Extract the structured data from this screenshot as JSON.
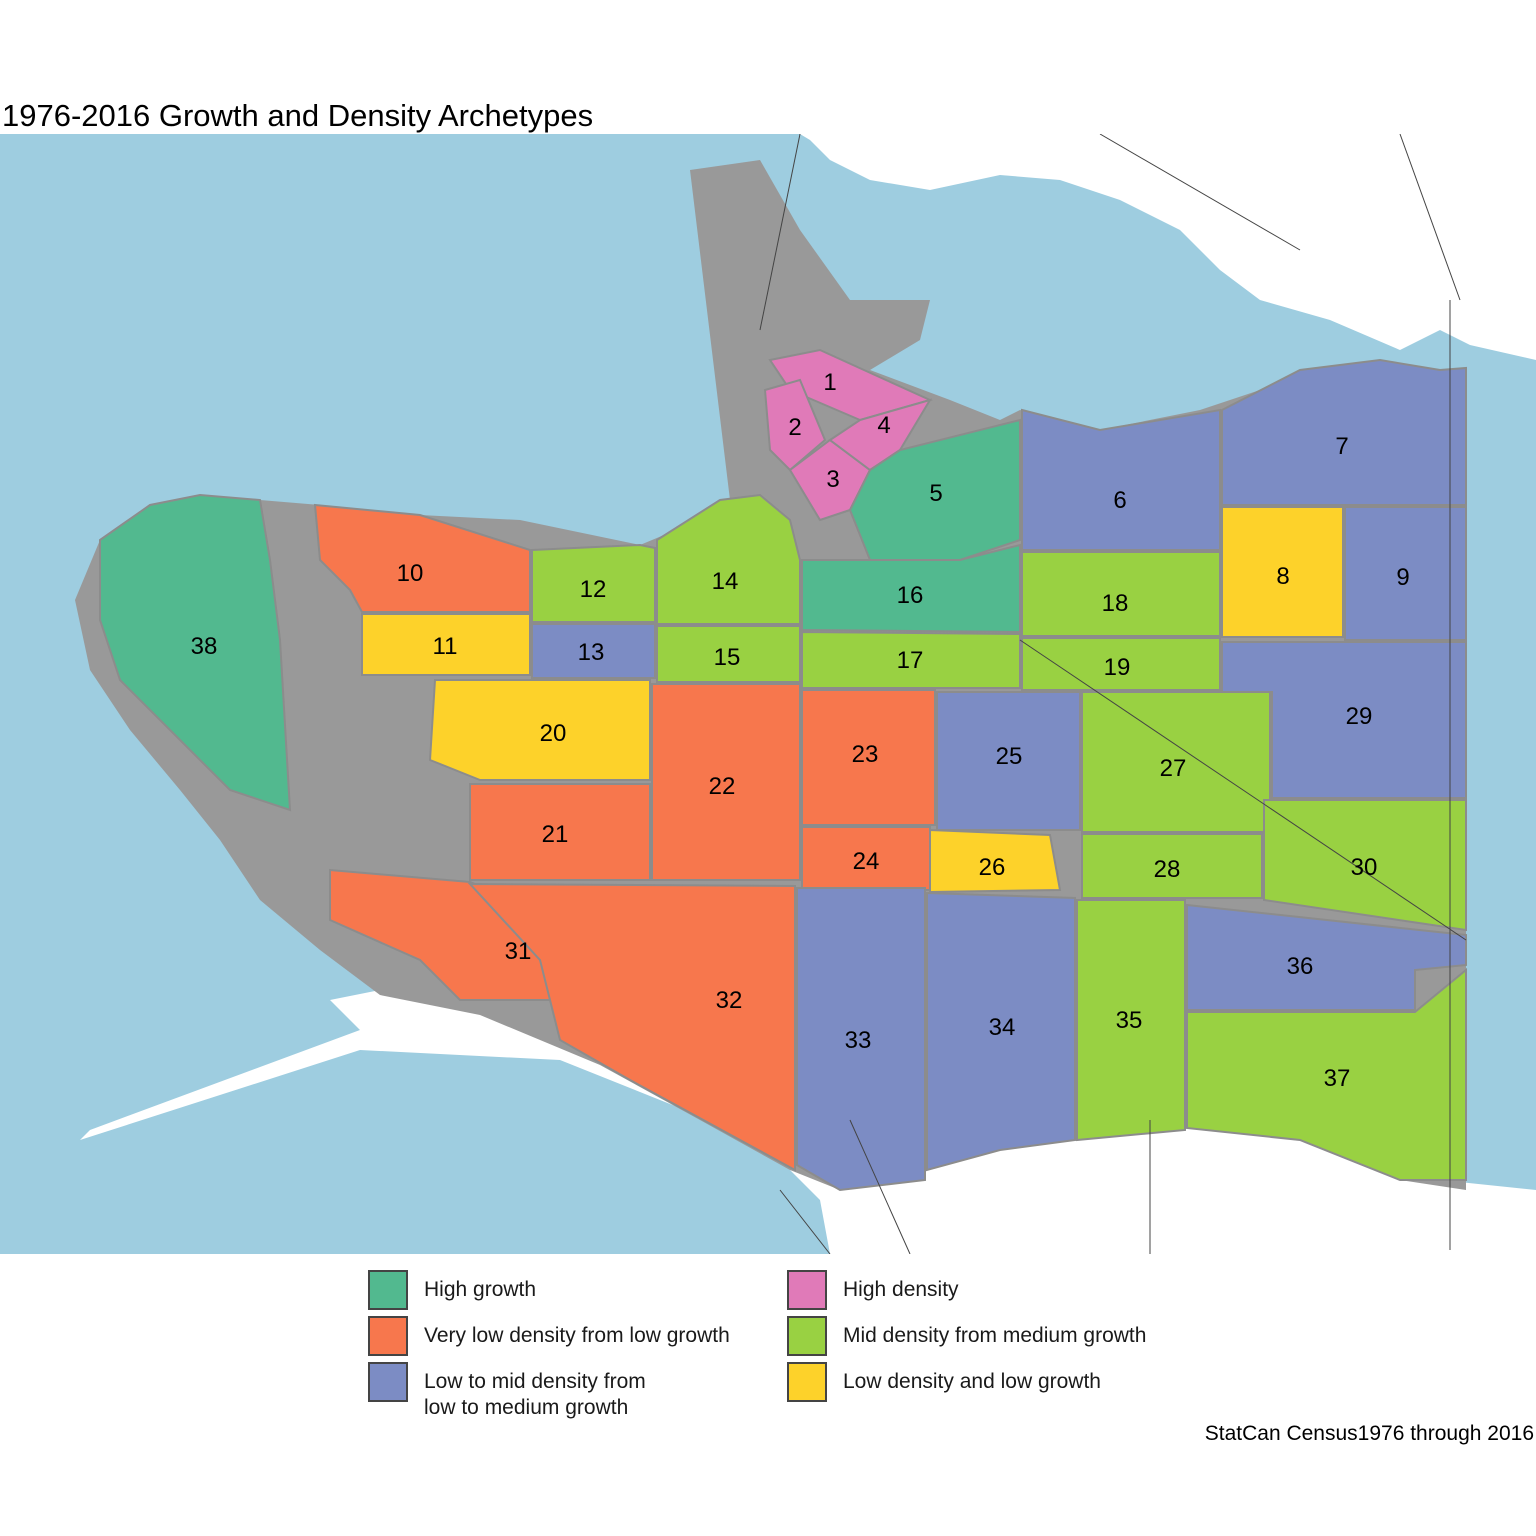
{
  "title": "1976-2016 Growth and Density Archetypes",
  "caption": "StatCan Census1976 through 2016",
  "colors": {
    "water": "#9ecde0",
    "land": "#ffffff",
    "unclassified": "#999999",
    "boundary": "#8c8c8c",
    "road": "#444444"
  },
  "legend": {
    "items": [
      {
        "key": "high_growth",
        "label": "High growth",
        "color": "#52b98f"
      },
      {
        "key": "very_low_density",
        "label": "Very low density from low growth",
        "color": "#f7774d"
      },
      {
        "key": "low_mid_density",
        "label": "Low to mid density from\nlow to medium growth",
        "color": "#7c8cc4"
      },
      {
        "key": "high_density",
        "label": "High density",
        "color": "#e07ab8"
      },
      {
        "key": "mid_density",
        "label": "Mid density from medium growth",
        "color": "#99d142"
      },
      {
        "key": "low_density",
        "label": "Low density and low growth",
        "color": "#fdd22a"
      }
    ]
  },
  "regions": [
    {
      "id": "1",
      "category": "high_density"
    },
    {
      "id": "2",
      "category": "high_density"
    },
    {
      "id": "3",
      "category": "high_density"
    },
    {
      "id": "4",
      "category": "high_density"
    },
    {
      "id": "5",
      "category": "high_growth"
    },
    {
      "id": "6",
      "category": "low_mid_density"
    },
    {
      "id": "7",
      "category": "low_mid_density"
    },
    {
      "id": "8",
      "category": "low_density"
    },
    {
      "id": "9",
      "category": "low_mid_density"
    },
    {
      "id": "10",
      "category": "very_low_density"
    },
    {
      "id": "11",
      "category": "low_density"
    },
    {
      "id": "12",
      "category": "mid_density"
    },
    {
      "id": "13",
      "category": "low_mid_density"
    },
    {
      "id": "14",
      "category": "mid_density"
    },
    {
      "id": "15",
      "category": "mid_density"
    },
    {
      "id": "16",
      "category": "high_growth"
    },
    {
      "id": "17",
      "category": "mid_density"
    },
    {
      "id": "18",
      "category": "mid_density"
    },
    {
      "id": "19",
      "category": "mid_density"
    },
    {
      "id": "20",
      "category": "low_density"
    },
    {
      "id": "21",
      "category": "very_low_density"
    },
    {
      "id": "22",
      "category": "very_low_density"
    },
    {
      "id": "23",
      "category": "very_low_density"
    },
    {
      "id": "24",
      "category": "very_low_density"
    },
    {
      "id": "25",
      "category": "low_mid_density"
    },
    {
      "id": "26",
      "category": "low_density"
    },
    {
      "id": "27",
      "category": "mid_density"
    },
    {
      "id": "28",
      "category": "mid_density"
    },
    {
      "id": "29",
      "category": "low_mid_density"
    },
    {
      "id": "30",
      "category": "mid_density"
    },
    {
      "id": "31",
      "category": "very_low_density"
    },
    {
      "id": "32",
      "category": "very_low_density"
    },
    {
      "id": "33",
      "category": "low_mid_density"
    },
    {
      "id": "34",
      "category": "low_mid_density"
    },
    {
      "id": "35",
      "category": "mid_density"
    },
    {
      "id": "36",
      "category": "low_mid_density"
    },
    {
      "id": "37",
      "category": "mid_density"
    },
    {
      "id": "38",
      "category": "high_growth"
    }
  ]
}
